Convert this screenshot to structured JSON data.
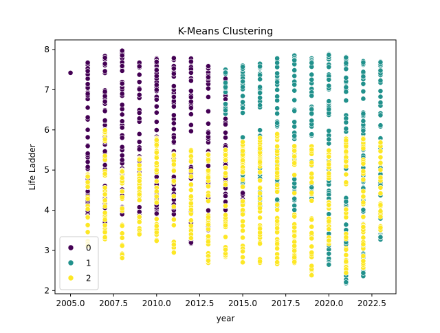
{
  "chart_data": {
    "type": "scatter",
    "title": "K-Means Clustering",
    "xlabel": "year",
    "ylabel": "Life Ladder",
    "xlim": [
      2004.1,
      2023.9
    ],
    "ylim": [
      1.92,
      8.24
    ],
    "xticks": [
      2005.0,
      2007.5,
      2010.0,
      2012.5,
      2015.0,
      2017.5,
      2020.0,
      2022.5
    ],
    "xtick_labels": [
      "2005.0",
      "2007.5",
      "2010.0",
      "2012.5",
      "2015.0",
      "2017.5",
      "2020.0",
      "2022.5"
    ],
    "yticks": [
      2,
      3,
      4,
      5,
      6,
      7,
      8
    ],
    "ytick_labels": [
      "2",
      "3",
      "4",
      "5",
      "6",
      "7",
      "8"
    ],
    "grid": false,
    "legend": {
      "position": "lower-left",
      "entries": [
        "0",
        "1",
        "2"
      ]
    },
    "series": [
      {
        "name": "0",
        "color": "#440154",
        "ranges": [
          {
            "year": 2005,
            "min": 7.42,
            "max": 7.42
          },
          {
            "year": 2006,
            "min": 3.9,
            "max": 7.68
          },
          {
            "year": 2007,
            "min": 3.7,
            "max": 7.84
          },
          {
            "year": 2008,
            "min": 3.9,
            "max": 7.98
          },
          {
            "year": 2009,
            "min": 3.8,
            "max": 7.68
          },
          {
            "year": 2010,
            "min": 3.9,
            "max": 7.78
          },
          {
            "year": 2011,
            "min": 3.9,
            "max": 7.79
          },
          {
            "year": 2012,
            "min": 3.17,
            "max": 7.78
          },
          {
            "year": 2013,
            "min": 3.5,
            "max": 7.6
          },
          {
            "year": 2014,
            "min": 4.0,
            "max": 7.49
          },
          {
            "year": 2015,
            "min": 3.9,
            "max": 5.2
          }
        ]
      },
      {
        "name": "1",
        "color": "#21918c",
        "ranges": [
          {
            "year": 2014,
            "min": 6.4,
            "max": 7.5
          },
          {
            "year": 2015,
            "min": 4.6,
            "max": 7.6
          },
          {
            "year": 2016,
            "min": 4.1,
            "max": 7.65
          },
          {
            "year": 2017,
            "min": 4.1,
            "max": 7.79
          },
          {
            "year": 2018,
            "min": 4.0,
            "max": 7.86
          },
          {
            "year": 2019,
            "min": 4.3,
            "max": 7.78
          },
          {
            "year": 2020,
            "min": 2.64,
            "max": 7.89
          },
          {
            "year": 2021,
            "min": 2.18,
            "max": 7.82
          },
          {
            "year": 2022,
            "min": 2.36,
            "max": 7.72
          },
          {
            "year": 2023,
            "min": 3.27,
            "max": 7.7
          }
        ]
      },
      {
        "name": "2",
        "color": "#fde725",
        "ranges": [
          {
            "year": 2006,
            "min": 3.1,
            "max": 4.9
          },
          {
            "year": 2007,
            "min": 3.28,
            "max": 6.0
          },
          {
            "year": 2008,
            "min": 2.81,
            "max": 5.0
          },
          {
            "year": 2009,
            "min": 3.4,
            "max": 5.3
          },
          {
            "year": 2010,
            "min": 3.23,
            "max": 5.8
          },
          {
            "year": 2011,
            "min": 2.94,
            "max": 5.4
          },
          {
            "year": 2012,
            "min": 3.3,
            "max": 5.5
          },
          {
            "year": 2013,
            "min": 2.69,
            "max": 5.4
          },
          {
            "year": 2014,
            "min": 2.84,
            "max": 5.5
          },
          {
            "year": 2015,
            "min": 2.7,
            "max": 5.7
          },
          {
            "year": 2016,
            "min": 2.69,
            "max": 5.8
          },
          {
            "year": 2017,
            "min": 2.66,
            "max": 5.9
          },
          {
            "year": 2018,
            "min": 2.69,
            "max": 5.6
          },
          {
            "year": 2019,
            "min": 2.38,
            "max": 5.6
          },
          {
            "year": 2020,
            "min": 3.16,
            "max": 5.5
          },
          {
            "year": 2021,
            "min": 2.44,
            "max": 5.8
          },
          {
            "year": 2022,
            "min": 2.56,
            "max": 5.8
          },
          {
            "year": 2023,
            "min": 3.5,
            "max": 5.7
          }
        ]
      }
    ]
  }
}
